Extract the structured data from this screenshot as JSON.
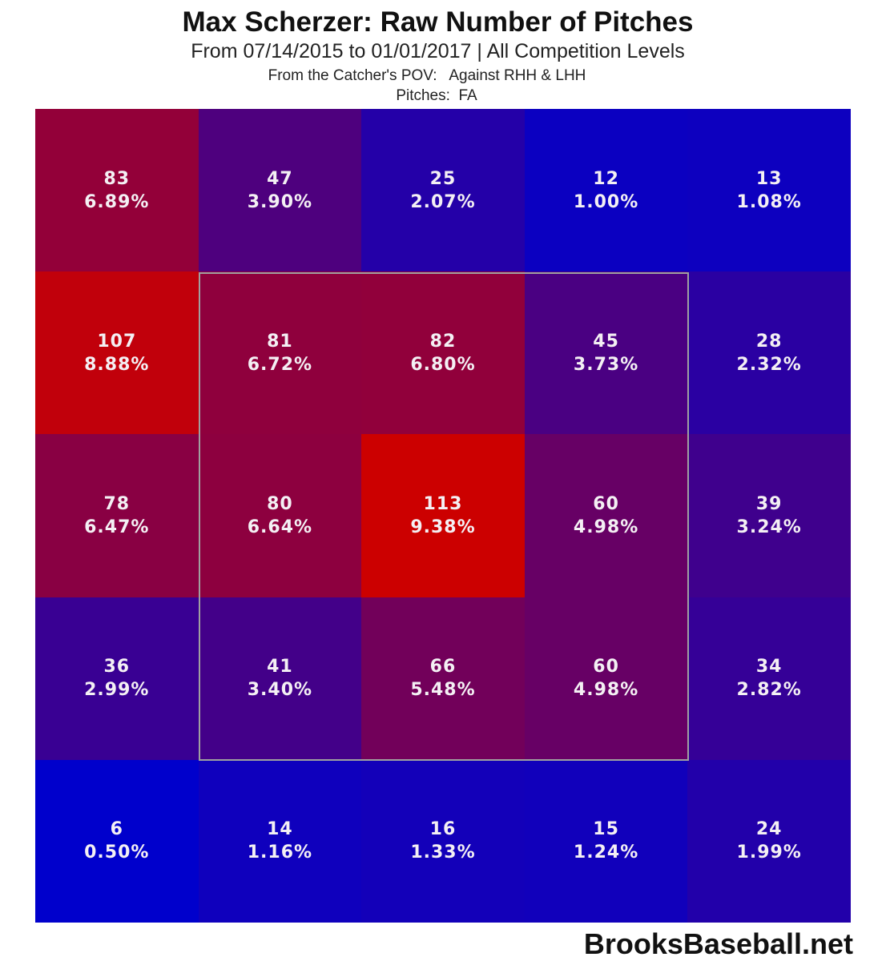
{
  "header": {
    "title": "Max Scherzer: Raw Number of Pitches",
    "subtitle": "From 07/14/2015 to 01/01/2017 | All Competition Levels",
    "pov": "From the Catcher's POV:   Against RHH & LHH",
    "pitches": "Pitches:  FA"
  },
  "footer": {
    "brand": "BrooksBaseball.net"
  },
  "colors": {
    "low": "#0000cc",
    "high": "#cc0000"
  },
  "chart_data": {
    "type": "heatmap",
    "title": "Max Scherzer: Raw Number of Pitches",
    "subtitle": "From 07/14/2015 to 01/01/2017 | All Competition Levels",
    "rows": 5,
    "cols": 5,
    "counts": [
      [
        83,
        47,
        25,
        12,
        13
      ],
      [
        107,
        81,
        82,
        45,
        28
      ],
      [
        78,
        80,
        113,
        60,
        39
      ],
      [
        36,
        41,
        66,
        60,
        34
      ],
      [
        6,
        14,
        16,
        15,
        24
      ]
    ],
    "percents": [
      [
        "6.89%",
        "3.90%",
        "2.07%",
        "1.00%",
        "1.08%"
      ],
      [
        "8.88%",
        "6.72%",
        "6.80%",
        "3.73%",
        "2.32%"
      ],
      [
        "6.47%",
        "6.64%",
        "9.38%",
        "4.98%",
        "3.24%"
      ],
      [
        "2.99%",
        "3.40%",
        "5.48%",
        "4.98%",
        "2.82%"
      ],
      [
        "0.50%",
        "1.16%",
        "1.33%",
        "1.24%",
        "1.99%"
      ]
    ],
    "strike_zone": "inner 3x3 (rows 2-4, cols 2-4)",
    "color_scale": [
      "#0000cc",
      "#cc0000"
    ]
  }
}
